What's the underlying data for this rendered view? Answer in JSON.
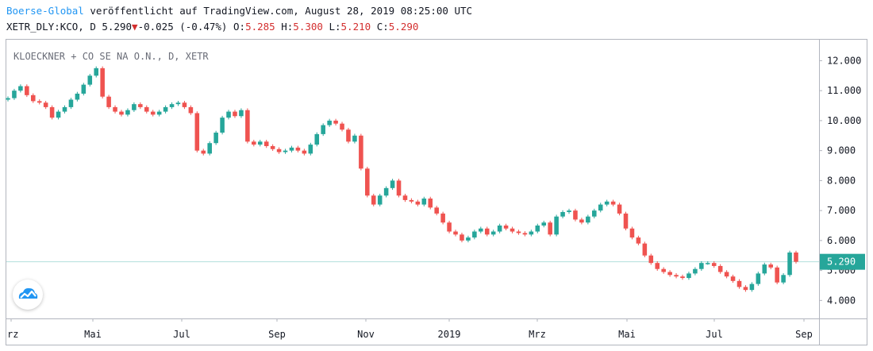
{
  "header": {
    "author": "Boerse-Global",
    "published": "veröffentlicht auf TradingView.com, August 28, 2019 08:25:00 UTC",
    "ticker_prefix": "XETR_DLY:KCO, D 5.290",
    "change_arrow": "▼",
    "change": "-0.025 (-0.47%)",
    "o_label": "O:",
    "o_value": "5.285",
    "h_label": "H:",
    "h_value": "5.300",
    "l_label": "L:",
    "l_value": "5.210",
    "c_label": "C:",
    "c_value": "5.290"
  },
  "symbol_label": "KLOECKNER + CO SE NA O.N., D, XETR",
  "logo": {
    "icon": "tradingview-cloud-icon"
  },
  "colors": {
    "up": "#26a69a",
    "down": "#ef5350",
    "price_line": "#b2dfdb",
    "price_badge": "#26a69a",
    "author": "#2196f3"
  },
  "chart_data": {
    "type": "candlestick",
    "title": "KLOECKNER + CO SE NA O.N., D, XETR",
    "xlabel": "",
    "ylabel": "",
    "x_ticks": [
      "rz",
      "Mai",
      "Jul",
      "Sep",
      "Nov",
      "2019",
      "Mrz",
      "Mai",
      "Jul",
      "Sep"
    ],
    "y_ticks": [
      "12.000",
      "11.000",
      "10.000",
      "9.000",
      "8.000",
      "7.000",
      "6.000",
      "5.000",
      "4.000"
    ],
    "y_tick_values": [
      12,
      11,
      10,
      9,
      8,
      7,
      6,
      5,
      4
    ],
    "ylim": [
      3.4,
      12.7
    ],
    "last_price": 5.29,
    "last_price_label": "5.290",
    "grid": false,
    "series": [
      {
        "values": [
          10.75,
          11.0,
          11.15,
          10.85,
          10.65,
          10.6,
          10.45,
          10.1,
          10.3,
          10.45,
          10.7,
          10.9,
          11.2,
          11.5,
          11.75,
          10.8,
          10.45,
          10.3,
          10.2,
          10.35,
          10.55,
          10.45,
          10.3,
          10.2,
          10.3,
          10.45,
          10.55,
          10.6,
          10.45,
          10.25,
          9.0,
          8.9,
          9.25,
          9.6,
          10.1,
          10.3,
          10.15,
          10.35,
          9.3,
          9.2,
          9.3,
          9.15,
          9.05,
          8.95,
          9.0,
          9.1,
          9.0,
          8.9,
          9.2,
          9.55,
          9.85,
          10.0,
          9.9,
          9.7,
          9.3,
          9.5,
          8.4,
          7.5,
          7.2,
          7.5,
          7.75,
          8.0,
          7.5,
          7.35,
          7.3,
          7.2,
          7.4,
          7.1,
          6.9,
          6.6,
          6.3,
          6.2,
          6.0,
          6.1,
          6.3,
          6.4,
          6.2,
          6.3,
          6.5,
          6.4,
          6.3,
          6.25,
          6.2,
          6.3,
          6.5,
          6.6,
          6.2,
          6.8,
          6.95,
          7.0,
          6.7,
          6.6,
          6.8,
          7.0,
          7.2,
          7.3,
          7.2,
          6.9,
          6.4,
          6.1,
          5.9,
          5.5,
          5.25,
          5.05,
          4.95,
          4.85,
          4.8,
          4.75,
          4.9,
          5.05,
          5.25,
          5.25,
          5.15,
          4.95,
          4.8,
          4.65,
          4.45,
          4.35,
          4.55,
          4.9,
          5.2,
          5.1,
          4.6,
          4.85,
          5.6,
          5.29
        ]
      }
    ]
  }
}
